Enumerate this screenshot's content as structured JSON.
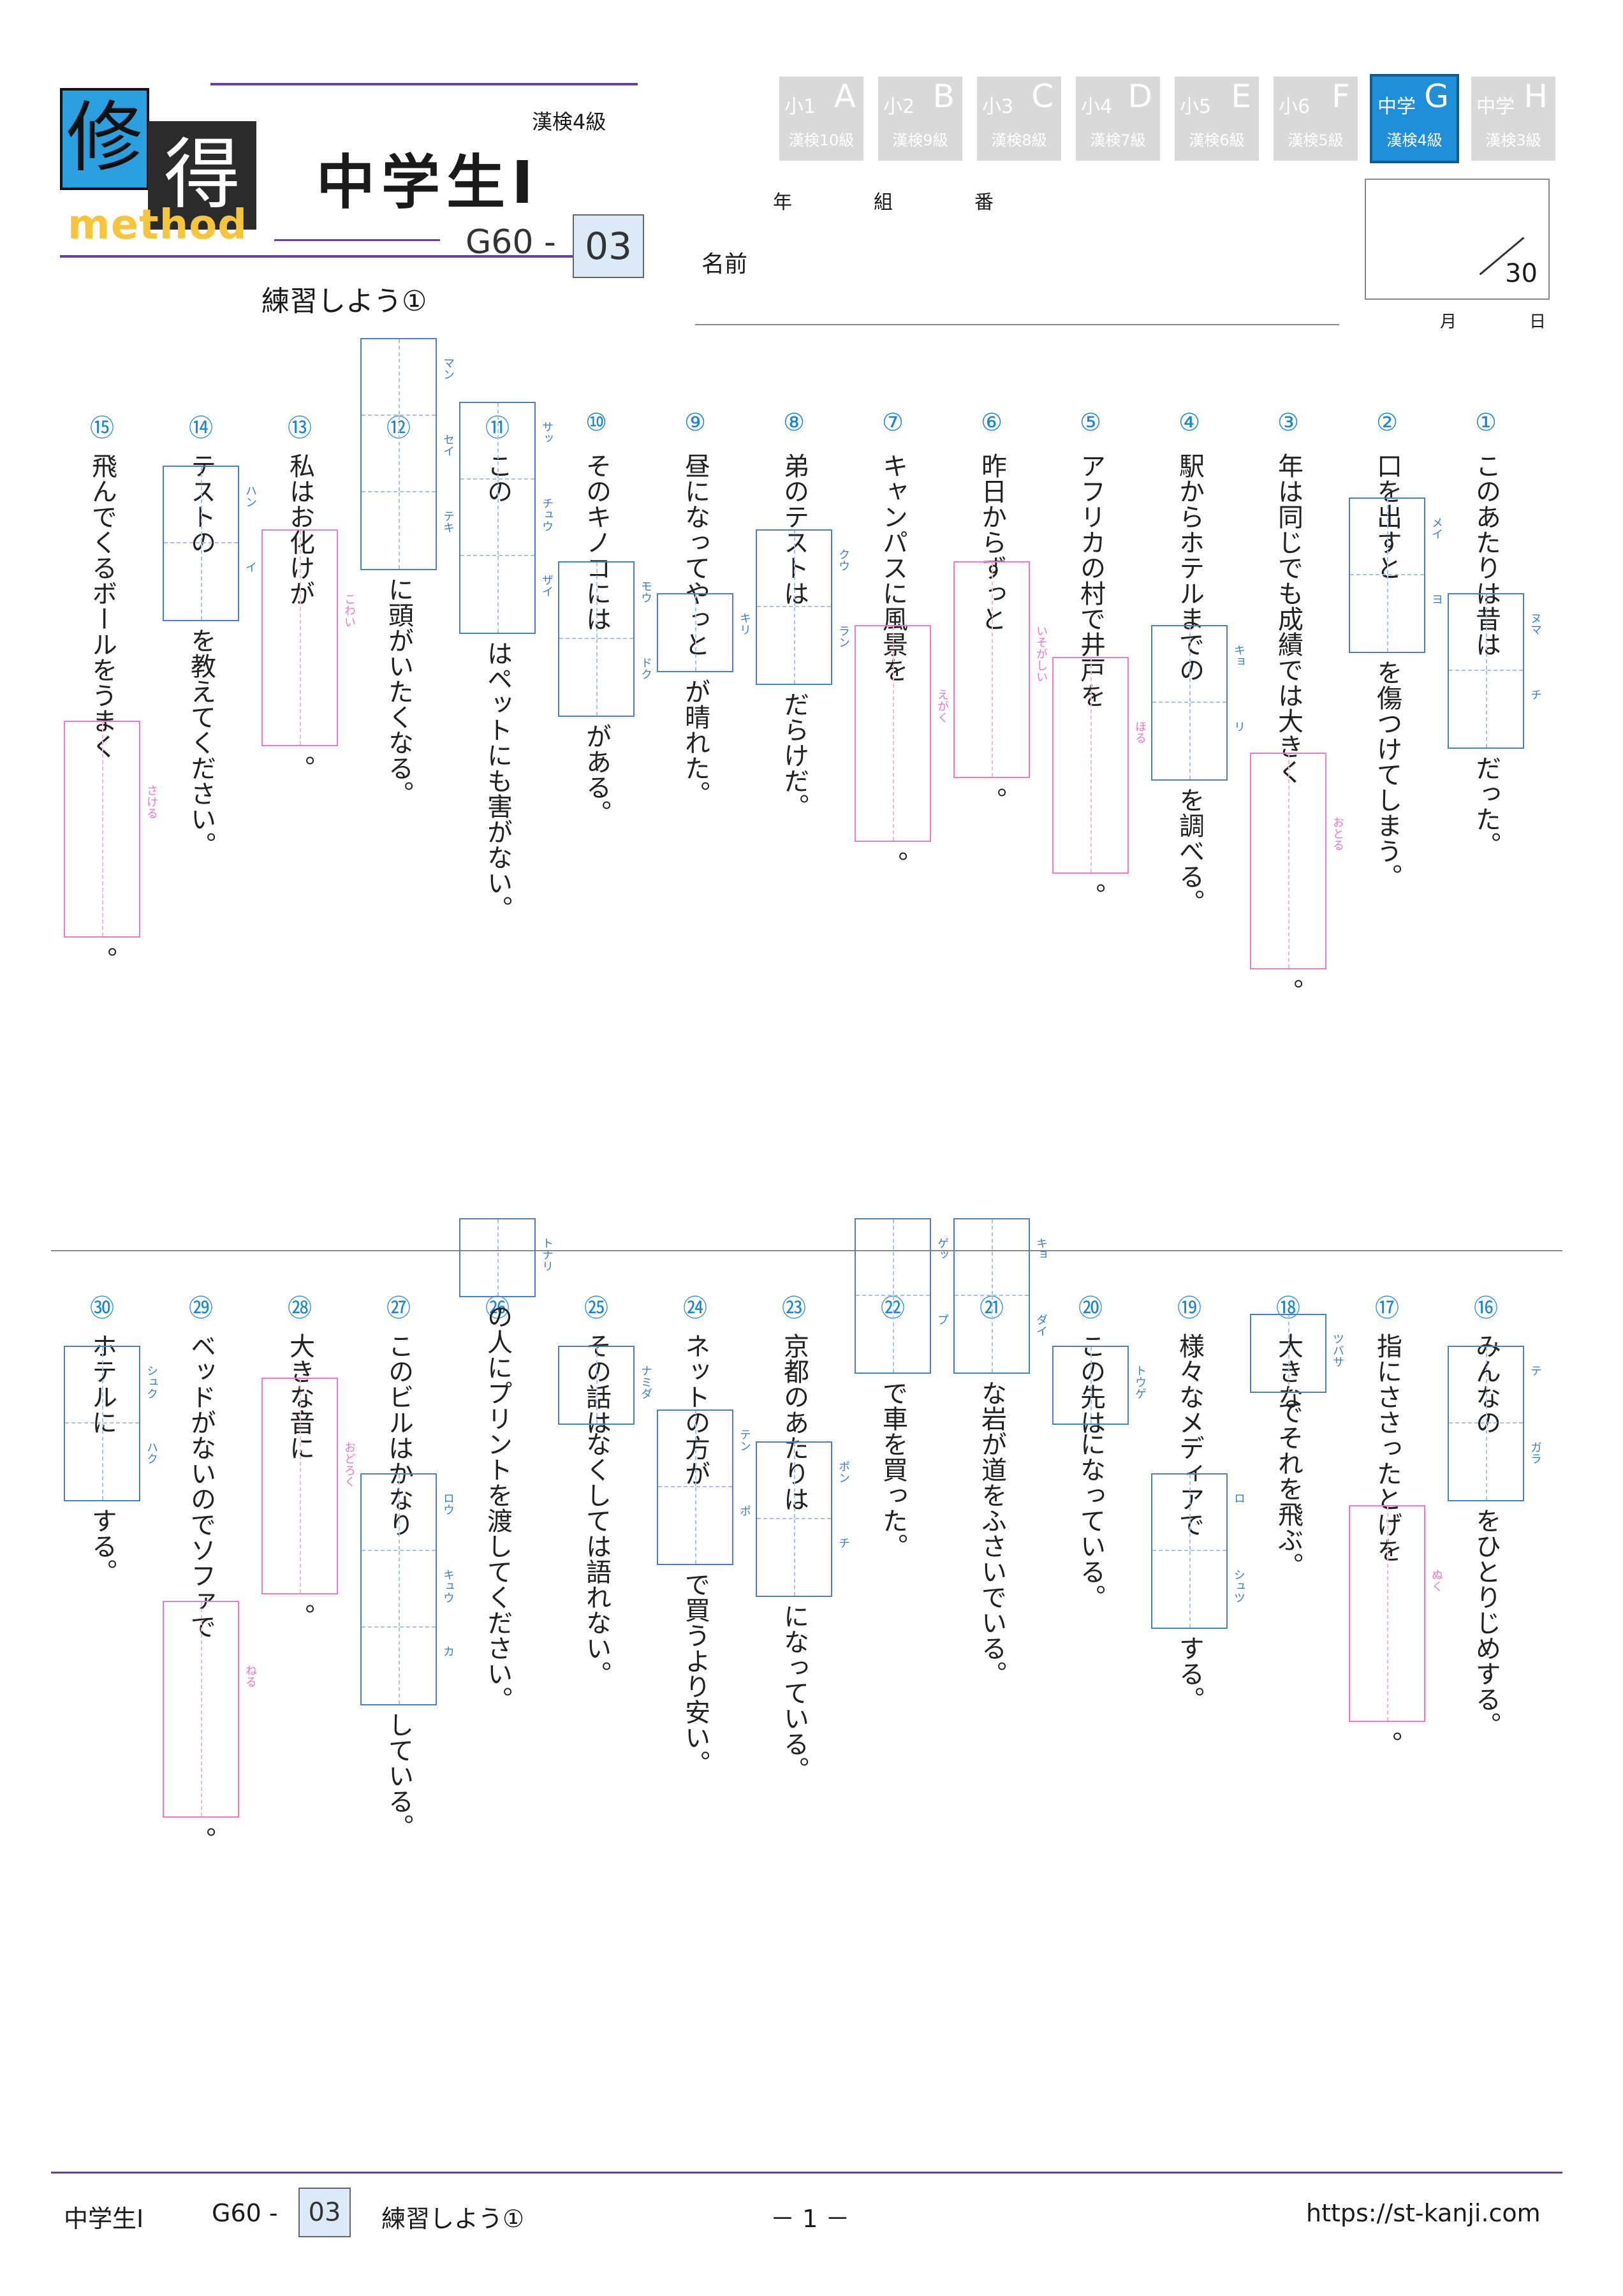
{
  "header": {
    "logo_a": "修",
    "logo_b": "得",
    "logo_sub": "method",
    "title": "中学生Ⅰ",
    "level": "漢検4級",
    "code": "G60 -",
    "code_num": "03",
    "subtitle": "練習しよう①"
  },
  "tabs": [
    {
      "g": "小1",
      "l": "A",
      "k": "漢検10級"
    },
    {
      "g": "小2",
      "l": "B",
      "k": "漢検9級"
    },
    {
      "g": "小3",
      "l": "C",
      "k": "漢検8級"
    },
    {
      "g": "小4",
      "l": "D",
      "k": "漢検7級"
    },
    {
      "g": "小5",
      "l": "E",
      "k": "漢検6級"
    },
    {
      "g": "小6",
      "l": "F",
      "k": "漢検5級"
    },
    {
      "g": "中学",
      "l": "G",
      "k": "漢検4級"
    },
    {
      "g": "中学",
      "l": "H",
      "k": "漢検3級"
    }
  ],
  "info": {
    "year": "年",
    "class": "組",
    "number": "番",
    "name": "名前",
    "score": "30",
    "month": "月",
    "day": "日"
  },
  "questions": [
    {
      "n": "①",
      "a": "このあたりは昔は",
      "b": "だった。",
      "r": [
        "ヌマ",
        "チ"
      ]
    },
    {
      "n": "②",
      "a": "口を出すと",
      "b": "を傷つけてしまう。",
      "r": [
        "メイ",
        "ヨ"
      ]
    },
    {
      "n": "③",
      "a": "年は同じでも成績では大きく",
      "b": "。",
      "r": [
        "おとる"
      ]
    },
    {
      "n": "④",
      "a": "駅からホテルまでの",
      "b": "を調べる。",
      "r": [
        "キョ",
        "リ"
      ]
    },
    {
      "n": "⑤",
      "a": "アフリカの村で井戸を",
      "b": "。",
      "r": [
        "ほる"
      ]
    },
    {
      "n": "⑥",
      "a": "昨日からずっと",
      "b": "。",
      "r": [
        "いそがしい"
      ]
    },
    {
      "n": "⑦",
      "a": "キャンパスに風景を",
      "b": "。",
      "r": [
        "えがく"
      ]
    },
    {
      "n": "⑧",
      "a": "弟のテストは",
      "b": "だらけだ。",
      "r": [
        "クウ",
        "ラン"
      ]
    },
    {
      "n": "⑨",
      "a": "昼になってやっと",
      "b": "が晴れた。",
      "r": [
        "キリ"
      ]
    },
    {
      "n": "⑩",
      "a": "そのキノコには",
      "b": "がある。",
      "r": [
        "モウ",
        "ドク"
      ]
    },
    {
      "n": "⑪",
      "a": "この",
      "b": "はペットにも害がない。",
      "r": [
        "サッ",
        "チュウ",
        "ザイ"
      ]
    },
    {
      "n": "⑫",
      "a": "",
      "b": "に頭がいたくなる。",
      "r": [
        "マン",
        "セイ",
        "テキ"
      ]
    },
    {
      "n": "⑬",
      "a": "私はお化けが",
      "b": "。",
      "r": [
        "こわい"
      ]
    },
    {
      "n": "⑭",
      "a": "テストの",
      "b": "を教えてください。",
      "r": [
        "ハン",
        "イ"
      ]
    },
    {
      "n": "⑮",
      "a": "飛んでくるボールをうまく",
      "b": "。",
      "r": [
        "さける"
      ]
    },
    {
      "n": "⑯",
      "a": "みんなの",
      "b": "をひとりじめする。",
      "r": [
        "テ",
        "ガラ"
      ]
    },
    {
      "n": "⑰",
      "a": "指にささったとげを",
      "b": "。",
      "r": [
        "ぬく"
      ]
    },
    {
      "n": "⑱",
      "a": "大きな",
      "b": "でそれを飛ぶ。",
      "r": [
        "ツバサ"
      ]
    },
    {
      "n": "⑲",
      "a": "様々なメディアで",
      "b": "する。",
      "r": [
        "ロ",
        "シュツ"
      ]
    },
    {
      "n": "⑳",
      "a": "この先は",
      "b": "になっている。",
      "r": [
        "トウゲ"
      ]
    },
    {
      "n": "㉑",
      "a": "",
      "b": "な岩が道をふさいでいる。",
      "r": [
        "キョ",
        "ダイ"
      ]
    },
    {
      "n": "㉒",
      "a": "",
      "b": "で車を買った。",
      "r": [
        "ゲッ",
        "プ"
      ]
    },
    {
      "n": "㉓",
      "a": "京都のあたりは",
      "b": "になっている。",
      "r": [
        "ボン",
        "チ"
      ]
    },
    {
      "n": "㉔",
      "a": "ネットの方が",
      "b": "で買うより安い。",
      "r": [
        "テン",
        "ポ"
      ]
    },
    {
      "n": "㉕",
      "a": "その話は",
      "b": "なくしては語れない。",
      "r": [
        "ナミダ"
      ]
    },
    {
      "n": "㉖",
      "a": "",
      "b": "の人にプリントを渡してください。",
      "r": [
        "トナリ"
      ]
    },
    {
      "n": "㉗",
      "a": "このビルはかなり",
      "b": "している。",
      "r": [
        "ロウ",
        "キュウ",
        "カ"
      ]
    },
    {
      "n": "㉘",
      "a": "大きな音に",
      "b": "。",
      "r": [
        "おどろく"
      ]
    },
    {
      "n": "㉙",
      "a": "ベッドがないのでソファで",
      "b": "。",
      "r": [
        "ねる"
      ]
    },
    {
      "n": "㉚",
      "a": "ホテルに",
      "b": "する。",
      "r": [
        "シュク",
        "ハク"
      ]
    }
  ],
  "footer": {
    "title": "中学生Ⅰ",
    "code": "G60 -",
    "code_num": "03",
    "sub": "練習しよう①",
    "page": "－ 1 －",
    "url": "https://st-kanji.com"
  }
}
